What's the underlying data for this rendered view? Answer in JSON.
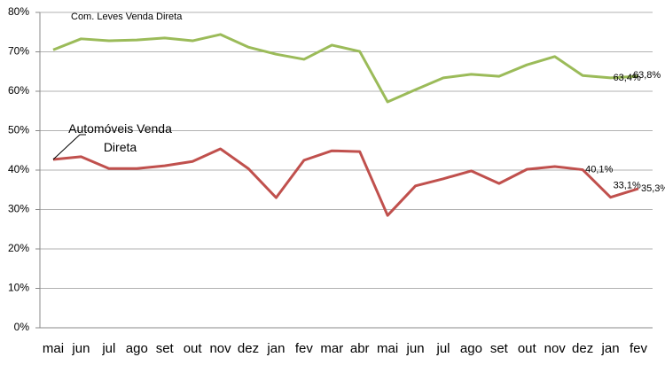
{
  "chart_data": {
    "type": "line",
    "categories": [
      "mai",
      "jun",
      "jul",
      "ago",
      "set",
      "out",
      "nov",
      "dez",
      "jan",
      "fev",
      "mar",
      "abr",
      "mai",
      "jun",
      "jul",
      "ago",
      "set",
      "out",
      "nov",
      "dez",
      "jan",
      "fev"
    ],
    "series": [
      {
        "name": "Com. Leves Venda Direta",
        "color": "#9bbb59",
        "values": [
          70.5,
          73.3,
          72.8,
          73.0,
          73.5,
          72.8,
          74.4,
          71.2,
          69.4,
          68.1,
          71.7,
          70.1,
          57.3,
          60.4,
          63.4,
          64.3,
          63.8,
          66.7,
          68.8,
          64.0,
          63.4,
          63.8
        ],
        "value_labels": [
          null,
          null,
          null,
          null,
          null,
          null,
          null,
          null,
          null,
          null,
          null,
          null,
          null,
          null,
          null,
          null,
          null,
          null,
          null,
          null,
          "63,4%",
          "63,8%"
        ]
      },
      {
        "name": "Automóveis Venda Direta",
        "color": "#c0504d",
        "values": [
          42.7,
          43.4,
          40.4,
          40.4,
          41.1,
          42.2,
          45.4,
          40.4,
          33.0,
          42.5,
          44.9,
          44.7,
          28.5,
          36.0,
          37.8,
          39.8,
          36.6,
          40.2,
          40.9,
          40.1,
          33.1,
          35.3
        ],
        "value_labels": [
          null,
          null,
          null,
          null,
          null,
          null,
          null,
          null,
          null,
          null,
          null,
          null,
          null,
          null,
          null,
          null,
          null,
          null,
          null,
          "40,1%",
          "33,1%",
          "35,3%"
        ]
      }
    ],
    "ylim": [
      0,
      80
    ],
    "yticks": [
      {
        "value": 0,
        "label": "0%"
      },
      {
        "value": 10,
        "label": "10%"
      },
      {
        "value": 20,
        "label": "20%"
      },
      {
        "value": 30,
        "label": "30%"
      },
      {
        "value": 40,
        "label": "40%"
      },
      {
        "value": 50,
        "label": "50%"
      },
      {
        "value": 60,
        "label": "60%"
      },
      {
        "value": 70,
        "label": "70%"
      },
      {
        "value": 80,
        "label": "80%"
      }
    ],
    "grid": true
  }
}
